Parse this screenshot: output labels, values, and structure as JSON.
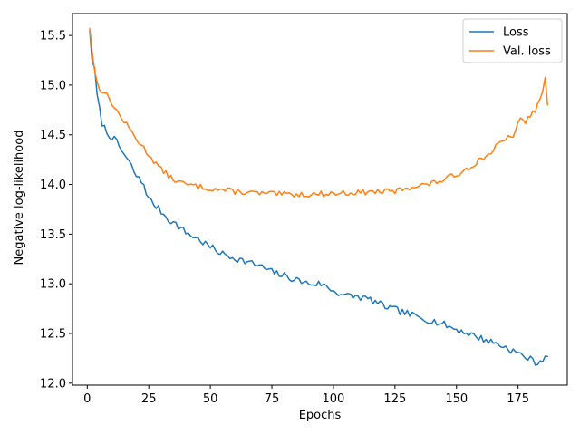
{
  "chart_data": {
    "type": "line",
    "title": "",
    "xlabel": "Epochs",
    "ylabel": "Negative log-likelihood",
    "xlim": [
      -6,
      195
    ],
    "ylim": [
      11.98,
      15.72
    ],
    "xticks": [
      0,
      25,
      50,
      75,
      100,
      125,
      150,
      175
    ],
    "yticks": [
      12.0,
      12.5,
      13.0,
      13.5,
      14.0,
      14.5,
      15.0,
      15.5
    ],
    "ytick_format": "1dp",
    "grid": false,
    "legend_position": "top-right",
    "series": [
      {
        "name": "Loss",
        "color": "#1f77b4",
        "anchors": [
          [
            1,
            15.55
          ],
          [
            2,
            15.25
          ],
          [
            3,
            15.15
          ],
          [
            4,
            14.9
          ],
          [
            5,
            14.75
          ],
          [
            6,
            14.62
          ],
          [
            8,
            14.52
          ],
          [
            10,
            14.48
          ],
          [
            12,
            14.42
          ],
          [
            15,
            14.3
          ],
          [
            18,
            14.18
          ],
          [
            20,
            14.08
          ],
          [
            23,
            14.0
          ],
          [
            25,
            13.85
          ],
          [
            28,
            13.78
          ],
          [
            30,
            13.73
          ],
          [
            33,
            13.65
          ],
          [
            36,
            13.6
          ],
          [
            40,
            13.52
          ],
          [
            45,
            13.45
          ],
          [
            50,
            13.37
          ],
          [
            55,
            13.3
          ],
          [
            60,
            13.26
          ],
          [
            65,
            13.22
          ],
          [
            70,
            13.18
          ],
          [
            75,
            13.12
          ],
          [
            80,
            13.08
          ],
          [
            85,
            13.04
          ],
          [
            90,
            13.0
          ],
          [
            95,
            13.0
          ],
          [
            100,
            12.93
          ],
          [
            105,
            12.88
          ],
          [
            110,
            12.87
          ],
          [
            115,
            12.84
          ],
          [
            120,
            12.78
          ],
          [
            125,
            12.74
          ],
          [
            130,
            12.7
          ],
          [
            135,
            12.66
          ],
          [
            140,
            12.63
          ],
          [
            145,
            12.59
          ],
          [
            150,
            12.54
          ],
          [
            155,
            12.5
          ],
          [
            160,
            12.45
          ],
          [
            165,
            12.41
          ],
          [
            170,
            12.36
          ],
          [
            175,
            12.3
          ],
          [
            180,
            12.24
          ],
          [
            183,
            12.2
          ],
          [
            186,
            12.27
          ],
          [
            187,
            12.27
          ]
        ],
        "jitter": 0.035,
        "seed": 7
      },
      {
        "name": "Val. loss",
        "color": "#ff7f0e",
        "anchors": [
          [
            1,
            15.57
          ],
          [
            2,
            15.35
          ],
          [
            3,
            15.15
          ],
          [
            4,
            15.02
          ],
          [
            5,
            14.97
          ],
          [
            7,
            14.93
          ],
          [
            10,
            14.82
          ],
          [
            13,
            14.7
          ],
          [
            16,
            14.6
          ],
          [
            20,
            14.46
          ],
          [
            25,
            14.3
          ],
          [
            30,
            14.15
          ],
          [
            35,
            14.05
          ],
          [
            40,
            14.0
          ],
          [
            45,
            13.98
          ],
          [
            50,
            13.96
          ],
          [
            60,
            13.93
          ],
          [
            70,
            13.91
          ],
          [
            80,
            13.9
          ],
          [
            90,
            13.9
          ],
          [
            100,
            13.91
          ],
          [
            110,
            13.92
          ],
          [
            120,
            13.93
          ],
          [
            125,
            13.93
          ],
          [
            130,
            13.97
          ],
          [
            135,
            13.99
          ],
          [
            140,
            14.01
          ],
          [
            145,
            14.05
          ],
          [
            150,
            14.1
          ],
          [
            155,
            14.17
          ],
          [
            158,
            14.22
          ],
          [
            160,
            14.26
          ],
          [
            163,
            14.3
          ],
          [
            166,
            14.38
          ],
          [
            170,
            14.45
          ],
          [
            173,
            14.5
          ],
          [
            176,
            14.65
          ],
          [
            178,
            14.63
          ],
          [
            180,
            14.7
          ],
          [
            182,
            14.75
          ],
          [
            184,
            14.85
          ],
          [
            186,
            15.05
          ],
          [
            187,
            14.8
          ]
        ],
        "jitter": 0.028,
        "seed": 13
      }
    ]
  }
}
